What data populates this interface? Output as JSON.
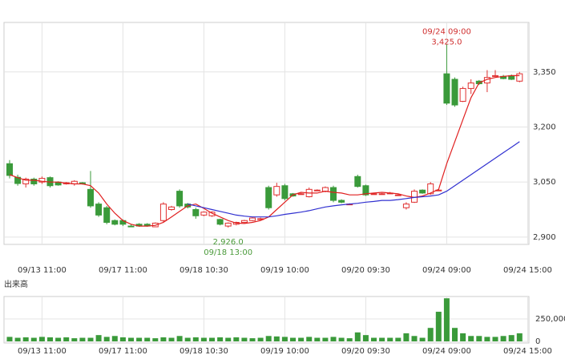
{
  "chart_data": {
    "type": "candlestick",
    "categories": [
      null,
      null,
      null,
      null,
      "09/13 11:00",
      null,
      null,
      null,
      null,
      null,
      null,
      null,
      null,
      null,
      "09/17 11:00",
      null,
      null,
      null,
      null,
      null,
      null,
      null,
      null,
      null,
      "09/18 10:30",
      null,
      null,
      null,
      null,
      null,
      null,
      null,
      null,
      null,
      "09/19 10:00",
      null,
      null,
      null,
      null,
      null,
      null,
      null,
      null,
      null,
      "09/20 09:30",
      null,
      null,
      null,
      null,
      null,
      null,
      null,
      null,
      null,
      "09/24 09:00",
      null,
      null,
      null,
      null,
      null,
      null,
      null,
      null,
      null,
      "09/24 15:00"
    ],
    "open": [
      3100,
      3063,
      3045,
      3058,
      3050,
      3062,
      3050,
      3045,
      3045,
      3048,
      3030,
      2990,
      2980,
      2945,
      2945,
      2930,
      2935,
      2935,
      2928,
      2945,
      2975,
      3025,
      2990,
      2975,
      2960,
      2958,
      2948,
      2930,
      2935,
      2940,
      2945,
      2950,
      3035,
      3015,
      3040,
      3018,
      3018,
      3010,
      3028,
      3025,
      3035,
      3000,
      2990,
      3065,
      3040,
      3018,
      3018,
      3020,
      3015,
      2980,
      2995,
      3028,
      3018,
      3028,
      3345,
      3330,
      3270,
      3305,
      3325,
      3320,
      3340,
      3338,
      3340,
      3325,
      null
    ],
    "high": [
      3110,
      3070,
      3062,
      3062,
      3065,
      3065,
      3052,
      3050,
      3055,
      3050,
      3080,
      2995,
      2985,
      2948,
      2948,
      2935,
      2938,
      2938,
      2940,
      2995,
      2985,
      3030,
      2993,
      2980,
      2970,
      2970,
      2950,
      2940,
      2942,
      2947,
      2954,
      2953,
      3040,
      3048,
      3045,
      3020,
      3020,
      3035,
      3030,
      3038,
      3040,
      3003,
      2992,
      3070,
      3043,
      3020,
      3020,
      3023,
      3017,
      2995,
      3030,
      3030,
      3050,
      3030,
      3425,
      3335,
      3310,
      3330,
      3328,
      3355,
      3355,
      3342,
      3343,
      3350,
      null
    ],
    "low": [
      3060,
      3040,
      3035,
      3040,
      3045,
      3035,
      3040,
      3043,
      3040,
      3043,
      2980,
      2955,
      2935,
      2932,
      2930,
      2928,
      2928,
      2928,
      2928,
      2940,
      2972,
      2980,
      2978,
      2950,
      2957,
      2955,
      2932,
      2926,
      2932,
      2938,
      2943,
      2948,
      2975,
      3010,
      3000,
      3010,
      3016,
      3008,
      3026,
      3022,
      2995,
      2992,
      2988,
      3035,
      3012,
      3016,
      3016,
      3018,
      3013,
      2975,
      2993,
      3018,
      3015,
      3026,
      3260,
      3255,
      3268,
      3290,
      3315,
      3295,
      3338,
      3330,
      3328,
      3322,
      null
    ],
    "close": [
      3068,
      3046,
      3058,
      3045,
      3060,
      3040,
      3042,
      3048,
      3052,
      3045,
      2985,
      2960,
      2940,
      2935,
      2935,
      2928,
      2930,
      2930,
      2938,
      2990,
      2982,
      2985,
      2982,
      2958,
      2968,
      2968,
      2935,
      2938,
      2940,
      2945,
      2952,
      2950,
      2980,
      3038,
      3005,
      3012,
      3018,
      3030,
      3028,
      3035,
      3000,
      2995,
      2990,
      3038,
      3015,
      3018,
      3018,
      3020,
      3015,
      2990,
      3025,
      3020,
      3045,
      3028,
      3265,
      3260,
      3305,
      3320,
      3318,
      3335,
      3340,
      3332,
      3330,
      3345,
      null
    ],
    "up_color": "#e03030",
    "down_color": "#3a9a3a",
    "moving_averages": [
      {
        "color": "#e02020",
        "values": [
          3070,
          3062,
          3055,
          3055,
          3052,
          3050,
          3050,
          3047,
          3045,
          3045,
          3040,
          3020,
          2990,
          2965,
          2945,
          2935,
          2930,
          2930,
          2932,
          2940,
          2955,
          2970,
          2985,
          2990,
          2978,
          2965,
          2955,
          2945,
          2938,
          2937,
          2940,
          2945,
          2955,
          2975,
          2995,
          3015,
          3022,
          3020,
          3020,
          3025,
          3022,
          3020,
          3015,
          3015,
          3018,
          3020,
          3022,
          3020,
          3018,
          3012,
          3008,
          3012,
          3020,
          3030,
          3100,
          3160,
          3220,
          3280,
          3320,
          3330,
          3335,
          3338,
          3340,
          3340,
          null
        ]
      },
      {
        "color": "#3030d0",
        "values": [
          null,
          null,
          null,
          null,
          null,
          null,
          null,
          null,
          null,
          null,
          null,
          null,
          null,
          null,
          null,
          null,
          null,
          null,
          null,
          null,
          null,
          null,
          2990,
          2985,
          2980,
          2975,
          2970,
          2965,
          2960,
          2957,
          2955,
          2955,
          2955,
          2958,
          2962,
          2965,
          2968,
          2972,
          2977,
          2982,
          2985,
          2988,
          2990,
          2992,
          2995,
          2997,
          3000,
          3000,
          3002,
          3005,
          3008,
          3010,
          3012,
          3015,
          3025,
          3040,
          3055,
          3070,
          3085,
          3100,
          3115,
          3130,
          3145,
          3160,
          null
        ]
      }
    ],
    "ylim": [
      2880,
      3485
    ],
    "yticks": [
      {
        "value": 2900,
        "label": "2,900"
      },
      {
        "value": 3050,
        "label": "3,050"
      },
      {
        "value": 3200,
        "label": "3,200"
      },
      {
        "value": 3350,
        "label": "3,350"
      }
    ],
    "grid": true,
    "max_annotation": {
      "time": "09/24 09:00",
      "value": 3425,
      "label": "3,425.0"
    },
    "min_annotation": {
      "time": "09/18 13:00",
      "value": 2926,
      "label": "2,926.0"
    },
    "volume": {
      "title": "出来高",
      "color": "#3a9a3a",
      "values": [
        50000,
        40000,
        45000,
        40000,
        50000,
        45000,
        40000,
        45000,
        35000,
        40000,
        40000,
        70000,
        50000,
        60000,
        45000,
        40000,
        40000,
        40000,
        35000,
        45000,
        40000,
        60000,
        40000,
        45000,
        40000,
        40000,
        45000,
        40000,
        45000,
        40000,
        35000,
        40000,
        60000,
        55000,
        50000,
        40000,
        40000,
        50000,
        40000,
        40000,
        50000,
        40000,
        35000,
        100000,
        70000,
        40000,
        40000,
        40000,
        40000,
        90000,
        60000,
        40000,
        150000,
        330000,
        480000,
        150000,
        90000,
        60000,
        60000,
        50000,
        50000,
        60000,
        70000,
        90000,
        null
      ],
      "ylim": [
        0,
        500000
      ],
      "yticks": [
        0,
        {
          "value": 250000,
          "label": "250,000"
        }
      ]
    }
  }
}
